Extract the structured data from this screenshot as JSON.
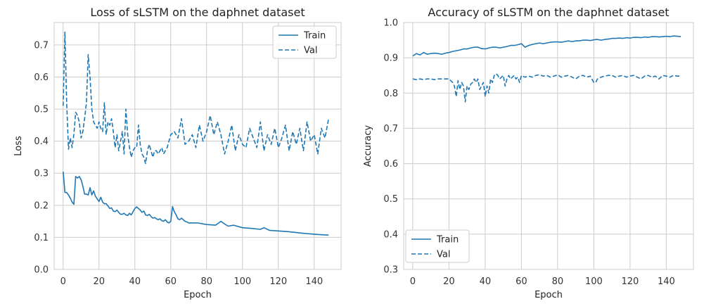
{
  "chart_data": [
    {
      "type": "line",
      "title": "Loss of sLSTM on the daphnet dataset",
      "xlabel": "Epoch",
      "ylabel": "Loss",
      "xlim": [
        -5,
        155
      ],
      "ylim": [
        0.0,
        0.77
      ],
      "xticks": [
        0,
        20,
        40,
        60,
        80,
        100,
        120,
        140
      ],
      "yticks": [
        0.0,
        0.1,
        0.2,
        0.3,
        0.4,
        0.5,
        0.6,
        0.7
      ],
      "ytick_labels": [
        "0.0",
        "0.1",
        "0.2",
        "0.3",
        "0.4",
        "0.5",
        "0.6",
        "0.7"
      ],
      "grid": true,
      "legend": "top-right",
      "color": "#1f77b4",
      "series": [
        {
          "name": "Train",
          "style": "solid",
          "x": [
            0,
            1,
            2,
            3,
            4,
            5,
            6,
            7,
            8,
            9,
            10,
            11,
            12,
            13,
            14,
            15,
            16,
            17,
            18,
            19,
            20,
            21,
            22,
            23,
            24,
            25,
            26,
            27,
            28,
            29,
            30,
            31,
            32,
            33,
            34,
            35,
            36,
            37,
            38,
            39,
            40,
            41,
            42,
            43,
            44,
            45,
            46,
            47,
            48,
            49,
            50,
            51,
            52,
            53,
            54,
            55,
            56,
            57,
            58,
            59,
            60,
            61,
            62,
            63,
            64,
            65,
            66,
            67,
            68,
            69,
            70,
            75,
            80,
            85,
            88,
            90,
            92,
            95,
            100,
            105,
            110,
            112,
            115,
            120,
            125,
            130,
            135,
            140,
            145,
            148
          ],
          "values": [
            0.305,
            0.24,
            0.24,
            0.232,
            0.222,
            0.21,
            0.203,
            0.29,
            0.285,
            0.29,
            0.28,
            0.26,
            0.235,
            0.235,
            0.232,
            0.255,
            0.232,
            0.245,
            0.228,
            0.22,
            0.212,
            0.225,
            0.21,
            0.205,
            0.205,
            0.198,
            0.19,
            0.192,
            0.182,
            0.18,
            0.185,
            0.178,
            0.172,
            0.172,
            0.175,
            0.17,
            0.168,
            0.175,
            0.17,
            0.18,
            0.19,
            0.195,
            0.19,
            0.185,
            0.178,
            0.182,
            0.17,
            0.168,
            0.172,
            0.165,
            0.16,
            0.162,
            0.158,
            0.155,
            0.158,
            0.152,
            0.15,
            0.155,
            0.148,
            0.145,
            0.15,
            0.196,
            0.18,
            0.17,
            0.158,
            0.155,
            0.16,
            0.155,
            0.15,
            0.148,
            0.145,
            0.145,
            0.14,
            0.138,
            0.15,
            0.142,
            0.135,
            0.138,
            0.13,
            0.128,
            0.125,
            0.13,
            0.122,
            0.12,
            0.118,
            0.115,
            0.112,
            0.11,
            0.108,
            0.107
          ]
        },
        {
          "name": "Val",
          "style": "dashed",
          "x": [
            0,
            1,
            2,
            3,
            4,
            5,
            6,
            7,
            8,
            9,
            10,
            11,
            12,
            13,
            14,
            15,
            16,
            17,
            18,
            19,
            20,
            21,
            22,
            23,
            24,
            25,
            26,
            27,
            28,
            29,
            30,
            31,
            32,
            33,
            34,
            35,
            36,
            37,
            38,
            39,
            40,
            41,
            42,
            43,
            44,
            45,
            46,
            47,
            48,
            49,
            50,
            51,
            52,
            53,
            54,
            55,
            56,
            57,
            58,
            59,
            60,
            62,
            64,
            66,
            68,
            70,
            72,
            74,
            76,
            78,
            80,
            82,
            84,
            86,
            88,
            90,
            92,
            94,
            96,
            98,
            100,
            102,
            104,
            106,
            108,
            110,
            112,
            114,
            116,
            118,
            120,
            122,
            124,
            126,
            128,
            130,
            132,
            134,
            136,
            138,
            140,
            142,
            144,
            146,
            148
          ],
          "values": [
            0.51,
            0.74,
            0.52,
            0.375,
            0.41,
            0.38,
            0.42,
            0.49,
            0.48,
            0.46,
            0.41,
            0.43,
            0.47,
            0.52,
            0.67,
            0.6,
            0.5,
            0.46,
            0.45,
            0.44,
            0.46,
            0.44,
            0.43,
            0.52,
            0.42,
            0.46,
            0.45,
            0.47,
            0.43,
            0.38,
            0.42,
            0.37,
            0.4,
            0.43,
            0.36,
            0.5,
            0.42,
            0.38,
            0.35,
            0.37,
            0.38,
            0.38,
            0.45,
            0.39,
            0.36,
            0.35,
            0.33,
            0.37,
            0.39,
            0.37,
            0.35,
            0.37,
            0.37,
            0.36,
            0.37,
            0.38,
            0.36,
            0.37,
            0.38,
            0.4,
            0.42,
            0.43,
            0.41,
            0.47,
            0.39,
            0.4,
            0.42,
            0.38,
            0.45,
            0.4,
            0.43,
            0.48,
            0.42,
            0.46,
            0.42,
            0.36,
            0.4,
            0.45,
            0.37,
            0.42,
            0.39,
            0.38,
            0.44,
            0.41,
            0.38,
            0.46,
            0.37,
            0.42,
            0.39,
            0.44,
            0.38,
            0.41,
            0.45,
            0.37,
            0.43,
            0.39,
            0.44,
            0.37,
            0.46,
            0.4,
            0.42,
            0.36,
            0.44,
            0.41,
            0.47
          ]
        }
      ]
    },
    {
      "type": "line",
      "title": "Accuracy of sLSTM on the daphnet dataset",
      "xlabel": "Epoch",
      "ylabel": "Accuracy",
      "xlim": [
        -5,
        155
      ],
      "ylim": [
        0.3,
        1.0
      ],
      "xticks": [
        0,
        20,
        40,
        60,
        80,
        100,
        120,
        140
      ],
      "yticks": [
        0.3,
        0.4,
        0.5,
        0.6,
        0.7,
        0.8,
        0.9,
        1.0
      ],
      "ytick_labels": [
        "0.3",
        "0.4",
        "0.5",
        "0.6",
        "0.7",
        "0.8",
        "0.9",
        "1.0"
      ],
      "grid": true,
      "legend": "bottom-left",
      "color": "#1f77b4",
      "series": [
        {
          "name": "Train",
          "style": "solid",
          "x": [
            0,
            2,
            4,
            6,
            8,
            10,
            12,
            14,
            16,
            18,
            20,
            22,
            24,
            26,
            28,
            30,
            32,
            34,
            36,
            38,
            40,
            42,
            44,
            46,
            48,
            50,
            52,
            54,
            56,
            58,
            60,
            62,
            64,
            66,
            68,
            70,
            72,
            74,
            76,
            78,
            80,
            82,
            84,
            86,
            88,
            90,
            92,
            94,
            96,
            98,
            100,
            102,
            104,
            106,
            108,
            110,
            112,
            114,
            116,
            118,
            120,
            122,
            124,
            126,
            128,
            130,
            132,
            134,
            136,
            138,
            140,
            142,
            144,
            146,
            148
          ],
          "values": [
            0.905,
            0.912,
            0.908,
            0.915,
            0.91,
            0.912,
            0.913,
            0.912,
            0.91,
            0.913,
            0.915,
            0.918,
            0.92,
            0.922,
            0.925,
            0.925,
            0.928,
            0.93,
            0.93,
            0.926,
            0.925,
            0.928,
            0.93,
            0.93,
            0.928,
            0.93,
            0.932,
            0.935,
            0.935,
            0.937,
            0.94,
            0.93,
            0.935,
            0.938,
            0.94,
            0.942,
            0.94,
            0.942,
            0.944,
            0.945,
            0.945,
            0.944,
            0.946,
            0.948,
            0.946,
            0.948,
            0.948,
            0.95,
            0.95,
            0.949,
            0.951,
            0.952,
            0.95,
            0.952,
            0.953,
            0.955,
            0.955,
            0.956,
            0.955,
            0.957,
            0.956,
            0.958,
            0.958,
            0.957,
            0.959,
            0.958,
            0.96,
            0.96,
            0.959,
            0.96,
            0.961,
            0.96,
            0.962,
            0.961,
            0.96
          ]
        },
        {
          "name": "Val",
          "style": "dashed",
          "x": [
            0,
            2,
            4,
            6,
            8,
            10,
            12,
            14,
            16,
            18,
            20,
            22,
            23,
            24,
            25,
            26,
            27,
            28,
            29,
            30,
            31,
            32,
            33,
            34,
            35,
            36,
            37,
            38,
            39,
            40,
            41,
            42,
            43,
            44,
            45,
            46,
            47,
            48,
            49,
            50,
            51,
            52,
            53,
            54,
            55,
            56,
            57,
            58,
            59,
            60,
            62,
            64,
            66,
            68,
            70,
            72,
            74,
            76,
            78,
            80,
            82,
            84,
            86,
            88,
            90,
            92,
            94,
            96,
            98,
            100,
            101,
            102,
            104,
            106,
            108,
            110,
            112,
            114,
            116,
            118,
            120,
            122,
            124,
            126,
            128,
            130,
            132,
            134,
            136,
            138,
            140,
            142,
            144,
            146,
            148
          ],
          "values": [
            0.84,
            0.838,
            0.84,
            0.838,
            0.84,
            0.84,
            0.838,
            0.84,
            0.84,
            0.84,
            0.84,
            0.83,
            0.82,
            0.79,
            0.835,
            0.81,
            0.83,
            0.82,
            0.775,
            0.82,
            0.81,
            0.825,
            0.83,
            0.84,
            0.83,
            0.84,
            0.81,
            0.82,
            0.83,
            0.79,
            0.82,
            0.8,
            0.84,
            0.83,
            0.85,
            0.855,
            0.85,
            0.84,
            0.845,
            0.85,
            0.82,
            0.84,
            0.85,
            0.84,
            0.845,
            0.85,
            0.84,
            0.845,
            0.83,
            0.85,
            0.845,
            0.848,
            0.845,
            0.85,
            0.852,
            0.848,
            0.85,
            0.845,
            0.848,
            0.852,
            0.845,
            0.848,
            0.85,
            0.845,
            0.84,
            0.848,
            0.85,
            0.845,
            0.848,
            0.83,
            0.83,
            0.84,
            0.845,
            0.848,
            0.85,
            0.85,
            0.845,
            0.848,
            0.85,
            0.845,
            0.848,
            0.85,
            0.845,
            0.84,
            0.848,
            0.85,
            0.845,
            0.848,
            0.84,
            0.85,
            0.848,
            0.845,
            0.85,
            0.848,
            0.848
          ]
        }
      ]
    }
  ]
}
